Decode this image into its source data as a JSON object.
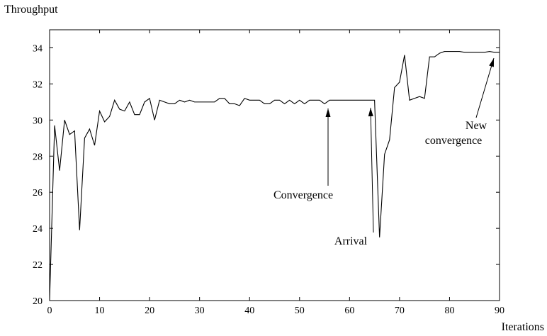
{
  "chart_data": {
    "type": "line",
    "ylabel": "Throughput",
    "xlabel": "Iterations",
    "x": [
      0,
      1,
      2,
      3,
      4,
      5,
      6,
      7,
      8,
      9,
      10,
      11,
      12,
      13,
      14,
      15,
      16,
      17,
      18,
      19,
      20,
      21,
      22,
      23,
      24,
      25,
      26,
      27,
      28,
      29,
      30,
      31,
      32,
      33,
      34,
      35,
      36,
      37,
      38,
      39,
      40,
      41,
      42,
      43,
      44,
      45,
      46,
      47,
      48,
      49,
      50,
      51,
      52,
      53,
      54,
      55,
      56,
      57,
      58,
      59,
      60,
      61,
      62,
      63,
      64,
      65,
      66,
      67,
      68,
      69,
      70,
      71,
      72,
      73,
      74,
      75,
      76,
      77,
      78,
      79,
      80,
      81,
      82,
      83,
      84,
      85,
      86,
      87,
      88,
      89,
      90
    ],
    "series": [
      {
        "color": "#000000",
        "values": [
          20,
          29.7,
          27.2,
          30.0,
          29.2,
          29.4,
          23.9,
          29.0,
          29.5,
          28.6,
          30.5,
          29.9,
          30.2,
          31.1,
          30.6,
          30.5,
          31.0,
          30.3,
          30.3,
          31.0,
          31.2,
          30.0,
          31.1,
          31.0,
          30.9,
          30.9,
          31.1,
          31.0,
          31.1,
          31.0,
          31.0,
          31.0,
          31.0,
          31.0,
          31.2,
          31.2,
          30.9,
          30.9,
          30.8,
          31.2,
          31.1,
          31.1,
          31.1,
          30.9,
          30.9,
          31.1,
          31.1,
          30.9,
          31.1,
          30.9,
          31.1,
          30.9,
          31.1,
          31.1,
          31.1,
          30.9,
          31.1,
          31.1,
          31.1,
          31.1,
          31.1,
          31.1,
          31.1,
          31.1,
          31.1,
          31.1,
          23.5,
          28.1,
          28.9,
          31.8,
          32.1,
          33.6,
          31.1,
          31.2,
          31.3,
          31.2,
          33.5,
          33.5,
          33.7,
          33.8,
          33.8,
          33.8,
          33.8,
          33.75,
          33.75,
          33.75,
          33.75,
          33.75,
          33.8,
          33.75,
          33.75
        ]
      }
    ],
    "xlim": [
      0,
      90
    ],
    "xticks": [
      0,
      10,
      20,
      30,
      40,
      50,
      60,
      70,
      80,
      90
    ],
    "ylim": [
      20,
      35
    ],
    "yticks": [
      20,
      22,
      24,
      26,
      28,
      30,
      32,
      34
    ],
    "annotations": [
      {
        "lines": [
          "Convergence"
        ]
      },
      {
        "lines": [
          "Arrival"
        ]
      },
      {
        "lines": [
          "New",
          "convergence"
        ]
      }
    ]
  }
}
